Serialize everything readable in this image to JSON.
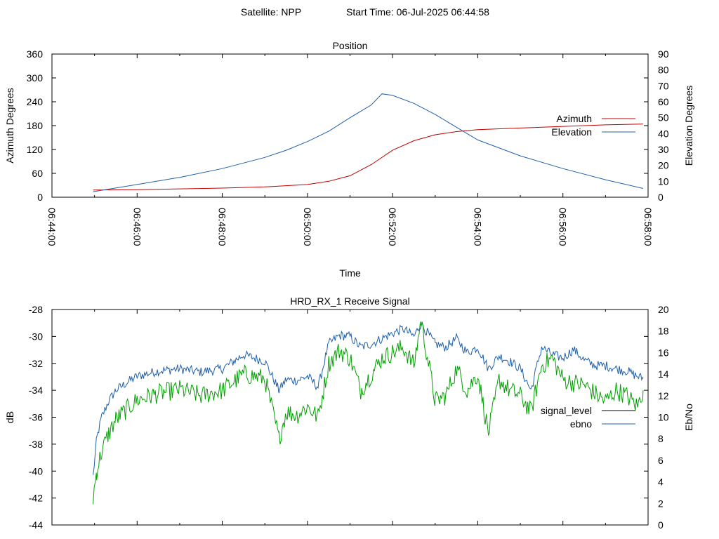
{
  "header": {
    "satellite": "Satellite: NPP",
    "start_time": "Start Time: 06-Jul-2025 06:44:58"
  },
  "chart_data": [
    {
      "type": "line",
      "title": "Position",
      "xlabel": "Time",
      "ylabel": "Azimuth Degrees",
      "y2label": "Elevation Degrees",
      "xlim": [
        "06:44:00",
        "06:58:00"
      ],
      "ylim": [
        0,
        360
      ],
      "y2lim": [
        0,
        90
      ],
      "x_ticks": [
        "06:44:00",
        "06:46:00",
        "06:48:00",
        "06:50:00",
        "06:52:00",
        "06:54:00",
        "06:56:00",
        "06:58:00"
      ],
      "y_ticks": [
        0,
        60,
        120,
        180,
        240,
        300,
        360
      ],
      "y2_ticks": [
        0,
        10,
        20,
        30,
        40,
        50,
        60,
        70,
        80,
        90
      ],
      "legend_position": "right",
      "series": [
        {
          "name": "Azimuth",
          "axis": "y",
          "color": "#c00000",
          "x": [
            "06:44:58",
            "06:46:00",
            "06:47:00",
            "06:48:00",
            "06:49:00",
            "06:50:00",
            "06:50:30",
            "06:51:00",
            "06:51:30",
            "06:52:00",
            "06:52:30",
            "06:53:00",
            "06:53:30",
            "06:54:00",
            "06:55:00",
            "06:56:00",
            "06:57:00",
            "06:57:53"
          ],
          "values": [
            18,
            19,
            21,
            23,
            26,
            32,
            40,
            54,
            82,
            118,
            142,
            157,
            165,
            170,
            174,
            178,
            182,
            184
          ]
        },
        {
          "name": "Elevation",
          "axis": "y2",
          "color": "#1f5fa8",
          "x": [
            "06:44:58",
            "06:46:00",
            "06:47:00",
            "06:48:00",
            "06:49:00",
            "06:49:30",
            "06:50:00",
            "06:50:30",
            "06:51:00",
            "06:51:30",
            "06:51:45",
            "06:52:00",
            "06:52:30",
            "06:53:00",
            "06:53:30",
            "06:54:00",
            "06:55:00",
            "06:56:00",
            "06:57:00",
            "06:57:53"
          ],
          "values": [
            3.5,
            8,
            12.5,
            18,
            25,
            29.5,
            35,
            41.5,
            50,
            58,
            65,
            64,
            59,
            52,
            44,
            36,
            26,
            18,
            11,
            5.5
          ]
        }
      ]
    },
    {
      "type": "line",
      "title": "HRD_RX_1 Receive Signal",
      "ylabel": "dB",
      "y2label": "Eb/No",
      "xlim": [
        "06:44:00",
        "06:58:00"
      ],
      "ylim": [
        -44,
        -28
      ],
      "y2lim": [
        0,
        20
      ],
      "y_ticks": [
        -44,
        -42,
        -40,
        -38,
        -36,
        -34,
        -32,
        -30,
        -28
      ],
      "y2_ticks": [
        0,
        2,
        4,
        6,
        8,
        10,
        12,
        14,
        16,
        18,
        20
      ],
      "legend_position": "right",
      "series": [
        {
          "name": "signal_level",
          "axis": "y",
          "color": "#000000",
          "x": [],
          "values": []
        },
        {
          "name": "ebno",
          "axis": "y2",
          "color": "#1f5fa8",
          "x": [
            "06:44:58",
            "06:45:03",
            "06:45:10",
            "06:45:20",
            "06:45:30",
            "06:45:45",
            "06:46:00",
            "06:46:30",
            "06:47:00",
            "06:47:30",
            "06:48:00",
            "06:48:30",
            "06:49:00",
            "06:49:20",
            "06:49:30",
            "06:49:45",
            "06:50:00",
            "06:50:15",
            "06:50:30",
            "06:50:45",
            "06:51:00",
            "06:51:15",
            "06:51:30",
            "06:51:45",
            "06:52:00",
            "06:52:15",
            "06:52:30",
            "06:52:40",
            "06:53:00",
            "06:53:15",
            "06:53:30",
            "06:53:45",
            "06:54:00",
            "06:54:15",
            "06:54:30",
            "06:54:45",
            "06:55:00",
            "06:55:15",
            "06:55:30",
            "06:55:45",
            "06:56:00",
            "06:56:15",
            "06:56:30",
            "06:56:45",
            "06:57:00",
            "06:57:15",
            "06:57:30",
            "06:57:45",
            "06:57:53"
          ],
          "values": [
            4.5,
            8,
            10,
            11.5,
            12.5,
            13.2,
            13.8,
            14.3,
            14.5,
            14.2,
            14.5,
            15.8,
            15.2,
            12.5,
            13.5,
            13.4,
            13.8,
            12.8,
            16.8,
            17.6,
            17.5,
            16.5,
            16.8,
            17.3,
            17.8,
            18.2,
            17.5,
            18.7,
            16.8,
            16.5,
            17.3,
            16.0,
            16.5,
            14.5,
            15.7,
            15.2,
            14.5,
            12.5,
            16.5,
            15.8,
            15.5,
            16.3,
            15.3,
            14.8,
            14.8,
            14.5,
            14.3,
            13.8,
            13.6
          ]
        },
        {
          "name": "",
          "axis": "y2",
          "color": "#00a000",
          "x": [
            "06:44:58",
            "06:45:03",
            "06:45:10",
            "06:45:20",
            "06:45:30",
            "06:45:45",
            "06:46:00",
            "06:46:30",
            "06:47:00",
            "06:47:30",
            "06:48:00",
            "06:48:30",
            "06:49:00",
            "06:49:20",
            "06:49:30",
            "06:49:45",
            "06:50:00",
            "06:50:15",
            "06:50:30",
            "06:50:45",
            "06:51:00",
            "06:51:15",
            "06:51:30",
            "06:51:45",
            "06:52:00",
            "06:52:15",
            "06:52:30",
            "06:52:40",
            "06:53:00",
            "06:53:15",
            "06:53:30",
            "06:53:45",
            "06:54:00",
            "06:54:15",
            "06:54:30",
            "06:54:45",
            "06:55:00",
            "06:55:15",
            "06:55:30",
            "06:55:45",
            "06:56:00",
            "06:56:15",
            "06:56:30",
            "06:56:45",
            "06:57:00",
            "06:57:15",
            "06:57:30",
            "06:57:45",
            "06:57:53"
          ],
          "values": [
            2.5,
            5,
            6.8,
            8.5,
            9.8,
            10.7,
            11.6,
            12.2,
            12.6,
            12.0,
            12.5,
            14.0,
            13.6,
            8.0,
            10.5,
            10.2,
            11.0,
            10.0,
            15.0,
            16.2,
            15.5,
            12.5,
            14.0,
            15.5,
            16.0,
            16.5,
            14.8,
            19.0,
            11.5,
            12.0,
            14.5,
            12.5,
            14.0,
            8.5,
            13.5,
            12.5,
            12.0,
            10.5,
            14.8,
            15.5,
            13.5,
            13.2,
            13.0,
            12.2,
            11.5,
            12.5,
            12.0,
            11.0,
            12.5
          ]
        }
      ]
    }
  ]
}
